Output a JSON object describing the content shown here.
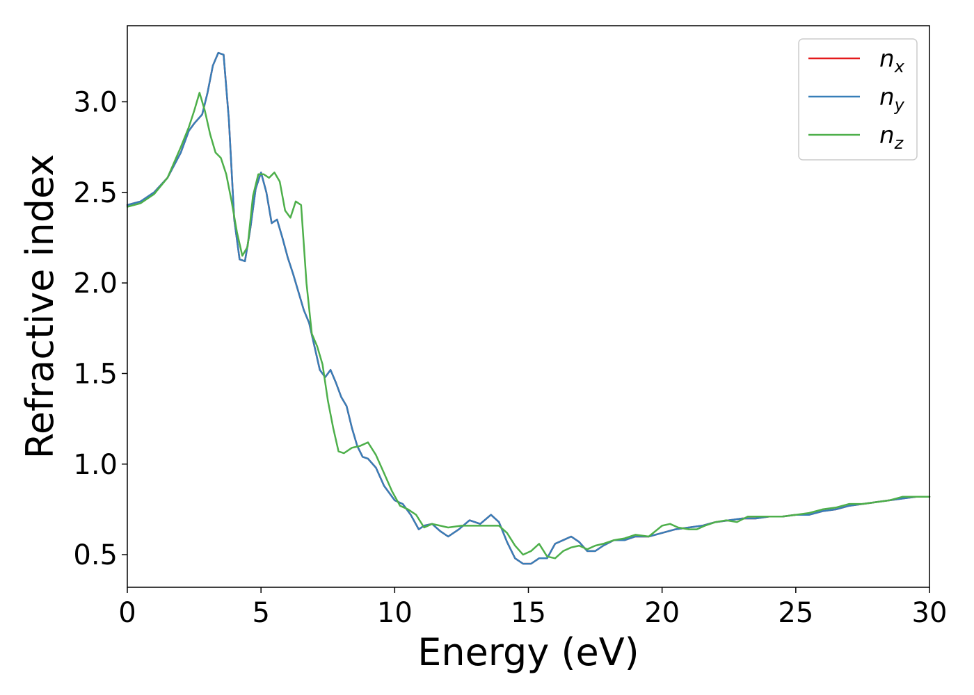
{
  "chart_data": {
    "type": "line",
    "title": "",
    "xlabel": "Energy (eV)",
    "ylabel": "Refractive index",
    "xlim": [
      0,
      30
    ],
    "ylim": [
      0.32,
      3.42
    ],
    "xticks": [
      0,
      5,
      10,
      15,
      20,
      25,
      30
    ],
    "yticks": [
      0.5,
      1.0,
      1.5,
      2.0,
      2.5,
      3.0
    ],
    "xtick_labels": [
      "0",
      "5",
      "10",
      "15",
      "20",
      "25",
      "30"
    ],
    "ytick_labels": [
      "0.5",
      "1.0",
      "1.5",
      "2.0",
      "2.5",
      "3.0"
    ],
    "grid": false,
    "legend": "top-right",
    "series": [
      {
        "name": "n",
        "subscript": "x",
        "color": "#e41a1c",
        "x": [
          0,
          0.5,
          1.0,
          1.5,
          2.0,
          2.3,
          2.5,
          2.8,
          3.0,
          3.2,
          3.4,
          3.6,
          3.8,
          4.0,
          4.2,
          4.4,
          4.6,
          4.8,
          5.0,
          5.2,
          5.4,
          5.6,
          5.8,
          6.0,
          6.2,
          6.4,
          6.6,
          6.8,
          7.0,
          7.2,
          7.4,
          7.6,
          7.8,
          8.0,
          8.2,
          8.4,
          8.6,
          8.8,
          9.0,
          9.3,
          9.6,
          10.0,
          10.3,
          10.6,
          10.9,
          11.1,
          11.4,
          11.7,
          12.0,
          12.4,
          12.8,
          13.2,
          13.6,
          13.9,
          14.2,
          14.5,
          14.8,
          15.1,
          15.4,
          15.7,
          16.0,
          16.3,
          16.6,
          16.9,
          17.2,
          17.5,
          17.8,
          18.2,
          18.6,
          19.0,
          19.5,
          20.0,
          20.5,
          21.0,
          21.5,
          22.0,
          22.5,
          23.0,
          23.5,
          24.0,
          24.5,
          25.0,
          25.5,
          26.0,
          26.5,
          27.0,
          27.5,
          28.0,
          28.5,
          29.0,
          29.5,
          30.0
        ],
        "values": [
          2.43,
          2.45,
          2.5,
          2.58,
          2.72,
          2.84,
          2.88,
          2.93,
          3.05,
          3.2,
          3.27,
          3.26,
          2.9,
          2.35,
          2.13,
          2.12,
          2.3,
          2.52,
          2.61,
          2.5,
          2.33,
          2.35,
          2.25,
          2.14,
          2.05,
          1.95,
          1.85,
          1.78,
          1.65,
          1.52,
          1.48,
          1.52,
          1.45,
          1.37,
          1.32,
          1.2,
          1.1,
          1.04,
          1.03,
          0.98,
          0.88,
          0.8,
          0.78,
          0.72,
          0.64,
          0.66,
          0.67,
          0.63,
          0.6,
          0.64,
          0.69,
          0.67,
          0.72,
          0.68,
          0.57,
          0.48,
          0.45,
          0.45,
          0.48,
          0.48,
          0.56,
          0.58,
          0.6,
          0.57,
          0.52,
          0.52,
          0.55,
          0.58,
          0.58,
          0.6,
          0.6,
          0.62,
          0.64,
          0.65,
          0.66,
          0.68,
          0.69,
          0.7,
          0.7,
          0.71,
          0.71,
          0.72,
          0.72,
          0.74,
          0.75,
          0.77,
          0.78,
          0.79,
          0.8,
          0.81,
          0.82,
          0.82
        ]
      },
      {
        "name": "n",
        "subscript": "y",
        "color": "#377eb8",
        "x": [
          0,
          0.5,
          1.0,
          1.5,
          2.0,
          2.3,
          2.5,
          2.8,
          3.0,
          3.2,
          3.4,
          3.6,
          3.8,
          4.0,
          4.2,
          4.4,
          4.6,
          4.8,
          5.0,
          5.2,
          5.4,
          5.6,
          5.8,
          6.0,
          6.2,
          6.4,
          6.6,
          6.8,
          7.0,
          7.2,
          7.4,
          7.6,
          7.8,
          8.0,
          8.2,
          8.4,
          8.6,
          8.8,
          9.0,
          9.3,
          9.6,
          10.0,
          10.3,
          10.6,
          10.9,
          11.1,
          11.4,
          11.7,
          12.0,
          12.4,
          12.8,
          13.2,
          13.6,
          13.9,
          14.2,
          14.5,
          14.8,
          15.1,
          15.4,
          15.7,
          16.0,
          16.3,
          16.6,
          16.9,
          17.2,
          17.5,
          17.8,
          18.2,
          18.6,
          19.0,
          19.5,
          20.0,
          20.5,
          21.0,
          21.5,
          22.0,
          22.5,
          23.0,
          23.5,
          24.0,
          24.5,
          25.0,
          25.5,
          26.0,
          26.5,
          27.0,
          27.5,
          28.0,
          28.5,
          29.0,
          29.5,
          30.0
        ],
        "values": [
          2.43,
          2.45,
          2.5,
          2.58,
          2.72,
          2.84,
          2.88,
          2.93,
          3.05,
          3.2,
          3.27,
          3.26,
          2.9,
          2.35,
          2.13,
          2.12,
          2.3,
          2.52,
          2.61,
          2.5,
          2.33,
          2.35,
          2.25,
          2.14,
          2.05,
          1.95,
          1.85,
          1.78,
          1.65,
          1.52,
          1.48,
          1.52,
          1.45,
          1.37,
          1.32,
          1.2,
          1.1,
          1.04,
          1.03,
          0.98,
          0.88,
          0.8,
          0.78,
          0.72,
          0.64,
          0.66,
          0.67,
          0.63,
          0.6,
          0.64,
          0.69,
          0.67,
          0.72,
          0.68,
          0.57,
          0.48,
          0.45,
          0.45,
          0.48,
          0.48,
          0.56,
          0.58,
          0.6,
          0.57,
          0.52,
          0.52,
          0.55,
          0.58,
          0.58,
          0.6,
          0.6,
          0.62,
          0.64,
          0.65,
          0.66,
          0.68,
          0.69,
          0.7,
          0.7,
          0.71,
          0.71,
          0.72,
          0.72,
          0.74,
          0.75,
          0.77,
          0.78,
          0.79,
          0.8,
          0.81,
          0.82,
          0.82
        ]
      },
      {
        "name": "n",
        "subscript": "z",
        "color": "#4daf4a",
        "x": [
          0,
          0.5,
          1.0,
          1.5,
          2.0,
          2.3,
          2.5,
          2.7,
          2.9,
          3.1,
          3.3,
          3.5,
          3.7,
          3.9,
          4.1,
          4.3,
          4.5,
          4.7,
          4.9,
          5.1,
          5.3,
          5.5,
          5.7,
          5.9,
          6.1,
          6.3,
          6.5,
          6.7,
          6.9,
          7.1,
          7.3,
          7.5,
          7.7,
          7.9,
          8.1,
          8.4,
          8.7,
          9.0,
          9.3,
          9.6,
          9.9,
          10.2,
          10.5,
          10.8,
          11.1,
          11.4,
          11.7,
          12.0,
          12.5,
          13.0,
          13.5,
          13.9,
          14.2,
          14.5,
          14.8,
          15.1,
          15.4,
          15.7,
          16.0,
          16.3,
          16.6,
          16.9,
          17.2,
          17.5,
          17.8,
          18.2,
          18.6,
          19.0,
          19.5,
          20.0,
          20.3,
          20.6,
          21.0,
          21.3,
          21.6,
          22.0,
          22.4,
          22.8,
          23.2,
          23.6,
          24.0,
          24.5,
          25.0,
          25.5,
          26.0,
          26.5,
          27.0,
          27.5,
          28.0,
          28.5,
          29.0,
          29.5,
          30.0
        ],
        "values": [
          2.42,
          2.44,
          2.49,
          2.58,
          2.75,
          2.86,
          2.95,
          3.05,
          2.95,
          2.82,
          2.72,
          2.69,
          2.6,
          2.45,
          2.28,
          2.15,
          2.2,
          2.48,
          2.6,
          2.6,
          2.58,
          2.61,
          2.56,
          2.4,
          2.36,
          2.45,
          2.43,
          2.0,
          1.72,
          1.65,
          1.55,
          1.35,
          1.2,
          1.07,
          1.06,
          1.09,
          1.1,
          1.12,
          1.05,
          0.95,
          0.85,
          0.77,
          0.75,
          0.72,
          0.65,
          0.67,
          0.66,
          0.65,
          0.66,
          0.66,
          0.66,
          0.66,
          0.62,
          0.55,
          0.5,
          0.52,
          0.56,
          0.49,
          0.48,
          0.52,
          0.54,
          0.55,
          0.53,
          0.55,
          0.56,
          0.58,
          0.59,
          0.61,
          0.6,
          0.66,
          0.67,
          0.65,
          0.64,
          0.64,
          0.66,
          0.68,
          0.69,
          0.68,
          0.71,
          0.71,
          0.71,
          0.71,
          0.72,
          0.73,
          0.75,
          0.76,
          0.78,
          0.78,
          0.79,
          0.8,
          0.82,
          0.82,
          0.82
        ]
      }
    ]
  }
}
